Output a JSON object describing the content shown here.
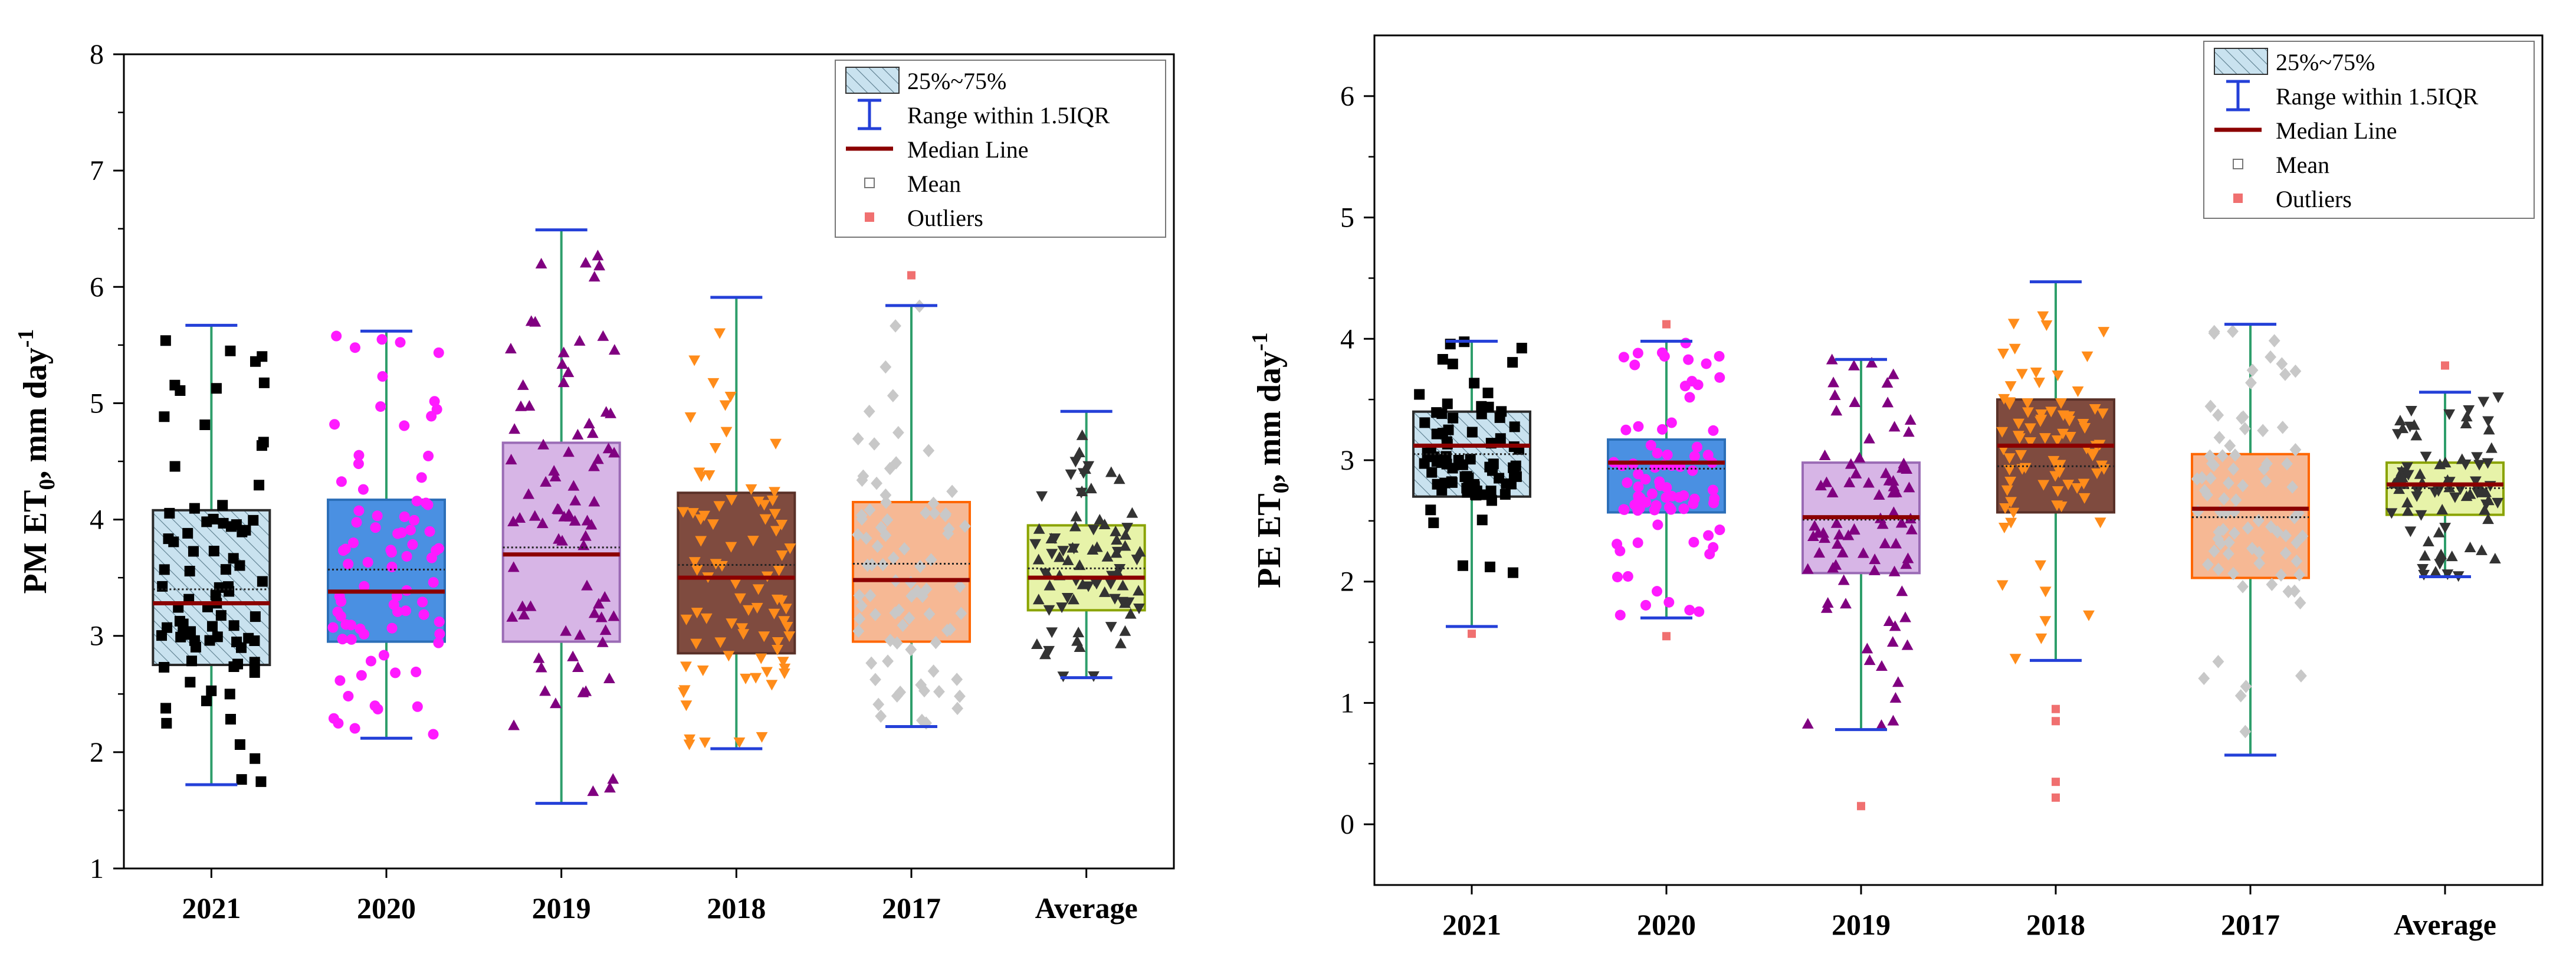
{
  "chart_data": [
    {
      "type": "box",
      "panel": "left",
      "ylabel": "PM ET0, mm day-1",
      "ylabel_parts": {
        "base": "PM ET",
        "sub": "0",
        "unit": ", mm day",
        "sup": "-1"
      },
      "ylim": [
        1,
        8
      ],
      "yticks": [
        "1",
        "2",
        "3",
        "4",
        "5",
        "6",
        "7",
        "8"
      ],
      "categories": [
        "2021",
        "2020",
        "2019",
        "2018",
        "2017",
        "Average"
      ],
      "boxes": [
        {
          "q1": 2.75,
          "median": 3.28,
          "q3": 4.08,
          "mean": 3.4,
          "whisker_low": 1.72,
          "whisker_high": 5.67,
          "outliers": []
        },
        {
          "q1": 2.95,
          "median": 3.38,
          "q3": 4.17,
          "mean": 3.57,
          "whisker_low": 2.12,
          "whisker_high": 5.62,
          "outliers": []
        },
        {
          "q1": 2.95,
          "median": 3.7,
          "q3": 4.66,
          "mean": 3.76,
          "whisker_low": 1.56,
          "whisker_high": 6.49,
          "outliers": []
        },
        {
          "q1": 2.85,
          "median": 3.5,
          "q3": 4.23,
          "mean": 3.61,
          "whisker_low": 2.03,
          "whisker_high": 5.91,
          "outliers": []
        },
        {
          "q1": 2.95,
          "median": 3.48,
          "q3": 4.15,
          "mean": 3.62,
          "whisker_low": 2.22,
          "whisker_high": 5.84,
          "outliers": [
            6.1
          ]
        },
        {
          "q1": 3.22,
          "median": 3.5,
          "q3": 3.95,
          "mean": 3.58,
          "whisker_low": 2.64,
          "whisker_high": 4.93,
          "outliers": []
        }
      ],
      "legend": [
        "25%~75%",
        "Range within 1.5IQR",
        "Median Line",
        "Mean",
        "Outliers"
      ],
      "legend_position": "top-right"
    },
    {
      "type": "box",
      "panel": "right",
      "ylabel": "PE ET0, mm day-1",
      "ylabel_parts": {
        "base": "PE ET",
        "sub": "0",
        "unit": ", mm day",
        "sup": "-1"
      },
      "ylim": [
        -0.5,
        6.5
      ],
      "yticks": [
        "0",
        "1",
        "2",
        "3",
        "4",
        "5",
        "6"
      ],
      "categories": [
        "2021",
        "2020",
        "2019",
        "2018",
        "2017",
        "Average"
      ],
      "boxes": [
        {
          "q1": 2.7,
          "median": 3.12,
          "q3": 3.4,
          "mean": 3.05,
          "whisker_low": 1.63,
          "whisker_high": 3.98,
          "outliers": [
            1.57
          ]
        },
        {
          "q1": 2.57,
          "median": 2.98,
          "q3": 3.17,
          "mean": 2.93,
          "whisker_low": 1.7,
          "whisker_high": 3.98,
          "outliers": [
            4.12,
            1.55
          ]
        },
        {
          "q1": 2.07,
          "median": 2.53,
          "q3": 2.98,
          "mean": 2.51,
          "whisker_low": 0.78,
          "whisker_high": 3.83,
          "outliers": [
            0.15
          ]
        },
        {
          "q1": 2.57,
          "median": 3.12,
          "q3": 3.5,
          "mean": 2.95,
          "whisker_low": 1.35,
          "whisker_high": 4.47,
          "outliers": [
            0.95,
            0.85,
            0.35,
            0.22
          ]
        },
        {
          "q1": 2.03,
          "median": 2.6,
          "q3": 3.05,
          "mean": 2.53,
          "whisker_low": 0.57,
          "whisker_high": 4.12,
          "outliers": []
        },
        {
          "q1": 2.55,
          "median": 2.8,
          "q3": 2.98,
          "mean": 2.77,
          "whisker_low": 2.04,
          "whisker_high": 3.56,
          "outliers": [
            3.78
          ]
        }
      ],
      "legend": [
        "25%~75%",
        "Range within 1.5IQR",
        "Median Line",
        "Mean",
        "Outliers"
      ],
      "legend_position": "top-right"
    }
  ],
  "series_styles": [
    {
      "category": "2021",
      "box_fill": "#c9e2ef",
      "hatch": true,
      "box_stroke": "#2a2a2a",
      "point_color": "#000000",
      "point_shape": "square"
    },
    {
      "category": "2020",
      "box_fill": "#4a90e2",
      "hatch": false,
      "box_stroke": "#2c6fb8",
      "point_color": "#ff1aff",
      "point_shape": "circle"
    },
    {
      "category": "2019",
      "box_fill": "#d7b5e6",
      "hatch": false,
      "box_stroke": "#9a6bb5",
      "point_color": "#800080",
      "point_shape": "triangle-up"
    },
    {
      "category": "2018",
      "box_fill": "#7f4b3f",
      "hatch": false,
      "box_stroke": "#5a3128",
      "point_color": "#ff8c1a",
      "point_shape": "triangle-down"
    },
    {
      "category": "2017",
      "box_fill": "#f6b894",
      "hatch": false,
      "box_stroke": "#ff6600",
      "point_color": "#c8c8c8",
      "point_shape": "diamond"
    },
    {
      "category": "Average",
      "box_fill": "#e7f3a9",
      "hatch": false,
      "box_stroke": "#8aa300",
      "point_color": "#333333",
      "point_shape": "triangle-mixed"
    }
  ],
  "colors": {
    "whisker": "#2e9e6b",
    "cap": "#2440d8",
    "median": "#8b0000",
    "mean_line": "#222222",
    "outlier": "#f07070",
    "axis": "#000000"
  }
}
